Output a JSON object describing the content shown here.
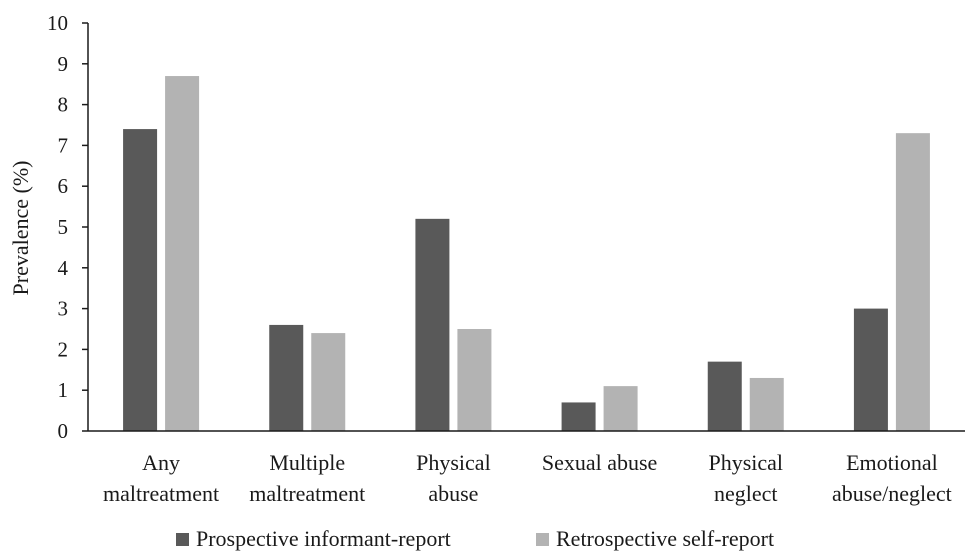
{
  "chart_data": {
    "type": "bar",
    "title": "",
    "xlabel": "",
    "ylabel": "Prevalence (%)",
    "ylim": [
      0,
      10
    ],
    "yticks": [
      0,
      1,
      2,
      3,
      4,
      5,
      6,
      7,
      8,
      9,
      10
    ],
    "grid": false,
    "legend_position": "bottom",
    "categories": [
      [
        "Any",
        "maltreatment"
      ],
      [
        "Multiple",
        "maltreatment"
      ],
      [
        "Physical",
        "abuse"
      ],
      [
        "Sexual abuse"
      ],
      [
        "Physical",
        "neglect"
      ],
      [
        "Emotional",
        "abuse/neglect"
      ]
    ],
    "series": [
      {
        "name": "Prospective informant-report",
        "color": "#595959",
        "values": [
          7.4,
          2.6,
          5.2,
          0.7,
          1.7,
          3.0
        ]
      },
      {
        "name": "Retrospective self-report",
        "color": "#b3b3b3",
        "values": [
          8.7,
          2.4,
          2.5,
          1.1,
          1.3,
          7.3
        ]
      }
    ]
  }
}
